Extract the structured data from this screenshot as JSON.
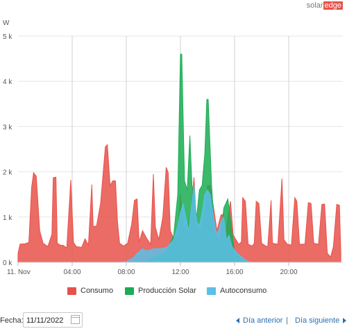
{
  "logo": {
    "part1": "solar",
    "part2": "edge"
  },
  "chart_data": {
    "type": "area",
    "ylabel": "W",
    "ylim": [
      0,
      5000
    ],
    "yticks": [
      0,
      1000,
      2000,
      3000,
      4000,
      5000
    ],
    "ytick_labels": [
      "0 k",
      "1 k",
      "2 k",
      "3 k",
      "4 k",
      "5 k"
    ],
    "xlim": [
      0,
      24
    ],
    "xticks": [
      0,
      4,
      8,
      12,
      16,
      20
    ],
    "xtick_labels": [
      "11. Nov",
      "04:00",
      "08:00",
      "12:00",
      "16:00",
      "20:00"
    ],
    "grid": true,
    "legend_position": "bottom",
    "series": [
      {
        "name": "Consumo",
        "color": "#e8514a",
        "points": [
          [
            0,
            200
          ],
          [
            0.15,
            400
          ],
          [
            0.5,
            410
          ],
          [
            0.8,
            440
          ],
          [
            1.0,
            1650
          ],
          [
            1.15,
            1980
          ],
          [
            1.35,
            1900
          ],
          [
            1.6,
            700
          ],
          [
            1.85,
            420
          ],
          [
            2.2,
            350
          ],
          [
            2.5,
            620
          ],
          [
            2.6,
            1870
          ],
          [
            2.8,
            1880
          ],
          [
            2.9,
            420
          ],
          [
            3.2,
            370
          ],
          [
            3.3,
            380
          ],
          [
            3.6,
            320
          ],
          [
            3.9,
            1820
          ],
          [
            4.1,
            440
          ],
          [
            4.3,
            350
          ],
          [
            4.7,
            330
          ],
          [
            4.95,
            520
          ],
          [
            5.2,
            380
          ],
          [
            5.45,
            1720
          ],
          [
            5.55,
            790
          ],
          [
            5.8,
            800
          ],
          [
            6.1,
            1300
          ],
          [
            6.45,
            2550
          ],
          [
            6.6,
            2600
          ],
          [
            6.8,
            1700
          ],
          [
            7.0,
            1800
          ],
          [
            7.2,
            1800
          ],
          [
            7.35,
            900
          ],
          [
            7.5,
            420
          ],
          [
            7.8,
            360
          ],
          [
            8.1,
            420
          ],
          [
            8.4,
            850
          ],
          [
            8.6,
            1370
          ],
          [
            8.8,
            1400
          ],
          [
            8.95,
            450
          ],
          [
            9.2,
            700
          ],
          [
            9.5,
            530
          ],
          [
            9.8,
            400
          ],
          [
            10.0,
            1950
          ],
          [
            10.15,
            780
          ],
          [
            10.4,
            500
          ],
          [
            10.7,
            1000
          ],
          [
            10.95,
            2100
          ],
          [
            11.1,
            1980
          ],
          [
            11.25,
            700
          ],
          [
            11.5,
            520
          ],
          [
            11.8,
            620
          ],
          [
            12.0,
            1500
          ],
          [
            12.2,
            800
          ],
          [
            12.5,
            700
          ],
          [
            12.8,
            1200
          ],
          [
            13.0,
            1880
          ],
          [
            13.2,
            800
          ],
          [
            13.5,
            700
          ],
          [
            13.8,
            1100
          ],
          [
            14.0,
            1700
          ],
          [
            14.2,
            1700
          ],
          [
            14.5,
            1100
          ],
          [
            14.7,
            700
          ],
          [
            15.0,
            1050
          ],
          [
            15.2,
            1050
          ],
          [
            15.3,
            500
          ],
          [
            15.5,
            1000
          ],
          [
            15.7,
            1350
          ],
          [
            15.9,
            600
          ],
          [
            16.3,
            400
          ],
          [
            16.5,
            450
          ],
          [
            16.6,
            1430
          ],
          [
            16.8,
            1350
          ],
          [
            17.0,
            400
          ],
          [
            17.3,
            360
          ],
          [
            17.45,
            420
          ],
          [
            17.6,
            1350
          ],
          [
            17.8,
            1300
          ],
          [
            18.0,
            420
          ],
          [
            18.3,
            360
          ],
          [
            18.45,
            350
          ],
          [
            18.7,
            1370
          ],
          [
            18.8,
            420
          ],
          [
            19.2,
            400
          ],
          [
            19.5,
            1850
          ],
          [
            19.65,
            500
          ],
          [
            19.9,
            400
          ],
          [
            20.2,
            380
          ],
          [
            20.45,
            1430
          ],
          [
            20.6,
            1350
          ],
          [
            20.8,
            400
          ],
          [
            21.2,
            400
          ],
          [
            21.45,
            1320
          ],
          [
            21.65,
            1300
          ],
          [
            21.85,
            420
          ],
          [
            22.2,
            400
          ],
          [
            22.45,
            1280
          ],
          [
            22.65,
            1290
          ],
          [
            22.85,
            200
          ],
          [
            23.1,
            120
          ],
          [
            23.3,
            350
          ],
          [
            23.55,
            1280
          ],
          [
            23.75,
            1260
          ],
          [
            23.85,
            200
          ]
        ]
      },
      {
        "name": "Producción Solar",
        "color": "#1aad54",
        "points": [
          [
            9.0,
            0
          ],
          [
            9.5,
            50
          ],
          [
            10.5,
            150
          ],
          [
            11.0,
            250
          ],
          [
            11.5,
            600
          ],
          [
            11.8,
            1500
          ],
          [
            12.0,
            4600
          ],
          [
            12.1,
            4600
          ],
          [
            12.3,
            1800
          ],
          [
            12.5,
            1600
          ],
          [
            12.7,
            2800
          ],
          [
            12.85,
            1700
          ],
          [
            13.0,
            1500
          ],
          [
            13.2,
            1000
          ],
          [
            13.4,
            1600
          ],
          [
            13.6,
            1700
          ],
          [
            13.8,
            2400
          ],
          [
            13.95,
            3600
          ],
          [
            14.05,
            3600
          ],
          [
            14.3,
            1700
          ],
          [
            14.5,
            700
          ],
          [
            14.8,
            500
          ],
          [
            15.0,
            600
          ],
          [
            15.2,
            1200
          ],
          [
            15.5,
            1400
          ],
          [
            15.8,
            700
          ],
          [
            16.0,
            200
          ],
          [
            16.5,
            80
          ],
          [
            17.0,
            0
          ]
        ]
      },
      {
        "name": "Autoconsumo",
        "color": "#5bbfe8",
        "points": [
          [
            7.5,
            0
          ],
          [
            8.0,
            20
          ],
          [
            8.5,
            100
          ],
          [
            8.8,
            200
          ],
          [
            9.2,
            300
          ],
          [
            9.5,
            250
          ],
          [
            10.0,
            300
          ],
          [
            10.5,
            300
          ],
          [
            11.0,
            330
          ],
          [
            11.5,
            500
          ],
          [
            11.8,
            800
          ],
          [
            12.0,
            1100
          ],
          [
            12.2,
            1300
          ],
          [
            12.4,
            1000
          ],
          [
            12.6,
            700
          ],
          [
            12.8,
            1200
          ],
          [
            13.0,
            1700
          ],
          [
            13.2,
            900
          ],
          [
            13.4,
            800
          ],
          [
            13.6,
            1100
          ],
          [
            13.8,
            1500
          ],
          [
            14.0,
            1600
          ],
          [
            14.2,
            1500
          ],
          [
            14.5,
            900
          ],
          [
            14.7,
            600
          ],
          [
            15.0,
            900
          ],
          [
            15.2,
            1000
          ],
          [
            15.4,
            500
          ],
          [
            15.6,
            600
          ],
          [
            15.8,
            350
          ],
          [
            16.2,
            200
          ],
          [
            16.6,
            100
          ],
          [
            17.0,
            20
          ],
          [
            17.2,
            0
          ]
        ]
      }
    ]
  },
  "legend": {
    "consumo": "Consumo",
    "produccion": "Producción Solar",
    "autoconsumo": "Autoconsumo"
  },
  "controls": {
    "fecha_label": "Fecha:",
    "date_value": "11/11/2022",
    "prev_label": "Día anterior",
    "separator": "|",
    "next_label": "Día siguiente"
  }
}
